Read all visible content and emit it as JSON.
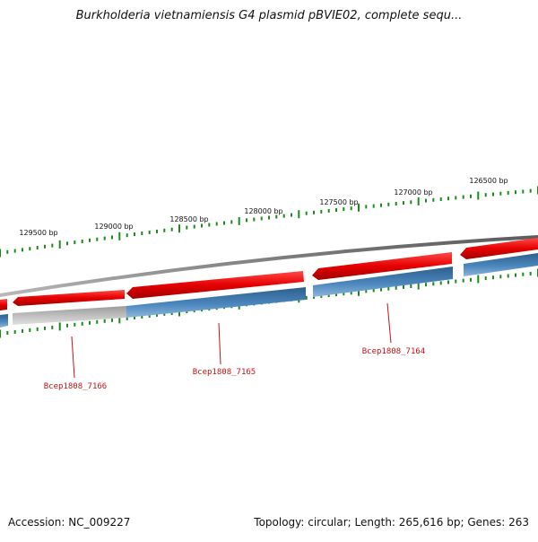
{
  "title": "Burkholderia vietnamiensis G4 plasmid pBVIE02, complete sequ...",
  "footer": {
    "accession": "Accession: NC_009227",
    "summary": "Topology: circular; Length: 265,616 bp; Genes: 263"
  },
  "colors": {
    "forward_strand": "#e60000",
    "reverse_strand": "#3f78aa",
    "backbone": "#7a7a7a",
    "tick": "#1a8c1a",
    "gene_label": "#cc1111",
    "inactive_segment": "#b7b7b7"
  },
  "scale_labels": [
    "126500 bp",
    "127000 bp",
    "127500 bp",
    "128000 bp",
    "128500 bp",
    "129000 bp",
    "129500 bp"
  ],
  "gene_labels": [
    "Bcep1808_7164",
    "Bcep1808_7165",
    "Bcep1808_7166"
  ]
}
